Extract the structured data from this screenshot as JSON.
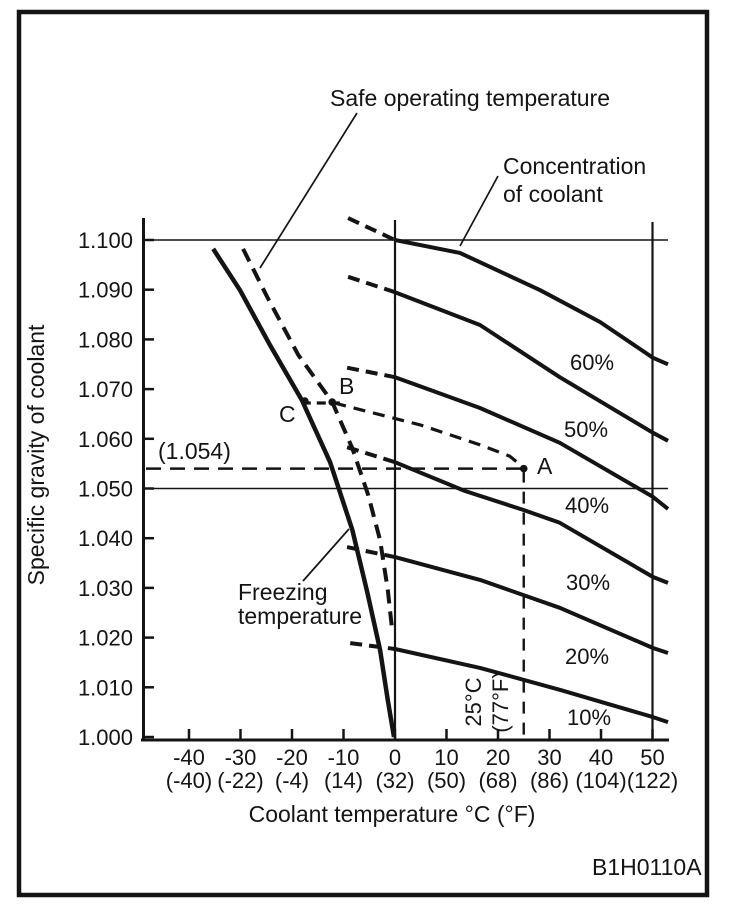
{
  "figure": {
    "id_label": "B1H0110A",
    "y_axis": {
      "title": "Specific gravity of coolant",
      "tick_labels": [
        "1.100",
        "1.090",
        "1.080",
        "1.070",
        "1.060",
        "1.050",
        "1.040",
        "1.030",
        "1.020",
        "1.010",
        "1.000"
      ]
    },
    "x_axis": {
      "title": "Coolant temperature °C (°F)",
      "ticks": [
        {
          "value": -40,
          "c": "-40",
          "f": "(-40)"
        },
        {
          "value": -30,
          "c": "-30",
          "f": "(-22)"
        },
        {
          "value": -20,
          "c": "-20",
          "f": "(-4)"
        },
        {
          "value": -10,
          "c": "-10",
          "f": "(14)"
        },
        {
          "value": 0,
          "c": "0",
          "f": "(32)"
        },
        {
          "value": 10,
          "c": "10",
          "f": "(50)"
        },
        {
          "value": 20,
          "c": "20",
          "f": "(68)"
        },
        {
          "value": 30,
          "c": "30",
          "f": "(86)"
        },
        {
          "value": 40,
          "c": "40",
          "f": "(104)"
        },
        {
          "value": 50,
          "c": "50",
          "f": "(122)"
        }
      ]
    },
    "annotations": {
      "safe_operating": "Safe operating temperature",
      "concentration_line1": "Concentration",
      "concentration_line2": "of coolant",
      "freezing_line1": "Freezing",
      "freezing_line2": "temperature",
      "sg_ref": "(1.054)",
      "temp_ref_line1": "25°C",
      "temp_ref_line2": "(77°F)",
      "point_a": "A",
      "point_b": "B",
      "point_c": "C"
    },
    "ink_color": "#141414"
  },
  "chart_data": {
    "type": "line",
    "title": "",
    "xlabel": "Coolant temperature °C (°F)",
    "ylabel": "Specific gravity of coolant",
    "xlim": [
      -49,
      53
    ],
    "ylim": [
      1.0,
      1.104
    ],
    "grid": "off",
    "x_ticks_c": [
      -40,
      -30,
      -20,
      -10,
      0,
      10,
      20,
      30,
      40,
      50
    ],
    "x_ticks_f": [
      -40,
      -22,
      -4,
      14,
      32,
      50,
      68,
      86,
      104,
      122
    ],
    "y_ticks": [
      1.0,
      1.01,
      1.02,
      1.03,
      1.04,
      1.05,
      1.06,
      1.07,
      1.08,
      1.09,
      1.1
    ],
    "concentration_curves": [
      {
        "label": "60%",
        "dashed": [
          [
            -9.1,
            1.1044
          ],
          [
            0,
            1.1
          ]
        ],
        "solid": [
          [
            0,
            1.1
          ],
          [
            12.6,
            1.0974
          ],
          [
            28.2,
            1.0899
          ],
          [
            39.8,
            1.0835
          ],
          [
            50.1,
            1.0763
          ],
          [
            53,
            1.075
          ]
        ]
      },
      {
        "label": "50%",
        "dashed": [
          [
            -9.1,
            1.0926
          ],
          [
            0,
            1.0895
          ]
        ],
        "solid": [
          [
            0,
            1.0895
          ],
          [
            16.5,
            1.0829
          ],
          [
            32,
            1.0724
          ],
          [
            50.1,
            1.0612
          ],
          [
            53,
            1.0596
          ]
        ]
      },
      {
        "label": "40%",
        "dashed": [
          [
            -9.3,
            1.0743
          ],
          [
            0,
            1.0724
          ]
        ],
        "solid": [
          [
            0,
            1.0724
          ],
          [
            16.5,
            1.0662
          ],
          [
            32,
            1.0592
          ],
          [
            50.1,
            1.0483
          ],
          [
            53,
            1.0459
          ]
        ]
      },
      {
        "label": "30%",
        "dashed": [
          [
            -9.3,
            1.0583
          ],
          [
            0,
            1.0553
          ]
        ],
        "solid": [
          [
            0,
            1.0553
          ],
          [
            13.6,
            1.0495
          ],
          [
            24.9,
            1.0457
          ],
          [
            32,
            1.0431
          ],
          [
            50.1,
            1.0322
          ],
          [
            53,
            1.031
          ]
        ]
      },
      {
        "label": "20%",
        "dashed": [
          [
            -9.3,
            1.0382
          ],
          [
            0,
            1.0362
          ]
        ],
        "solid": [
          [
            0,
            1.0362
          ],
          [
            16.5,
            1.0316
          ],
          [
            32,
            1.026
          ],
          [
            50.1,
            1.0179
          ],
          [
            53,
            1.0169
          ]
        ]
      },
      {
        "label": "10%",
        "dashed": [
          [
            -8.7,
            1.0189
          ],
          [
            0,
            1.0177
          ]
        ],
        "solid": [
          [
            0,
            1.0177
          ],
          [
            16.5,
            1.0139
          ],
          [
            32,
            1.0095
          ],
          [
            50.1,
            1.004
          ],
          [
            53,
            1.003
          ]
        ]
      }
    ],
    "freezing_curve": [
      [
        -35.3,
        1.0982
      ],
      [
        -30.1,
        1.0899
      ],
      [
        -24.3,
        1.0789
      ],
      [
        -18.1,
        1.0678
      ],
      [
        -12.6,
        1.0553
      ],
      [
        -8.3,
        1.0417
      ],
      [
        -5.4,
        1.0292
      ],
      [
        -2.9,
        1.0175
      ],
      [
        -1.4,
        1.0074
      ],
      [
        -0.2,
        1.0
      ]
    ],
    "safe_operating_curve": [
      [
        -29.5,
        1.0982
      ],
      [
        -24.7,
        1.0883
      ],
      [
        -18.8,
        1.0769
      ],
      [
        -12.2,
        1.0674
      ],
      [
        -8.3,
        1.0581
      ],
      [
        -5.2,
        1.0487
      ],
      [
        -2.9,
        1.0396
      ],
      [
        -1.4,
        1.0296
      ],
      [
        -0.6,
        1.022
      ]
    ],
    "guide_curve_b_to_a": [
      [
        -11.8,
        1.0672
      ],
      [
        4.9,
        1.0628
      ],
      [
        16.5,
        1.0588
      ],
      [
        22.3,
        1.0565
      ],
      [
        24.9,
        1.0543
      ]
    ],
    "guide_segment_c_to_b": [
      [
        -18.1,
        1.0672
      ],
      [
        -10.7,
        1.0672
      ]
    ],
    "reference_lines": {
      "horizontal_solid_sg": [
        1.1,
        1.05
      ],
      "horizontal_dashed_sg": 1.054,
      "vertical_solid_temp": [
        0,
        50
      ],
      "vertical_dashed_temp": 25
    },
    "usage_points": [
      {
        "name": "A",
        "temp_c": 25,
        "sg": 1.054
      },
      {
        "name": "B",
        "temp_c": -12.2,
        "sg": 1.0674
      },
      {
        "name": "C",
        "temp_c": -17.5,
        "sg": 1.0676
      }
    ]
  }
}
